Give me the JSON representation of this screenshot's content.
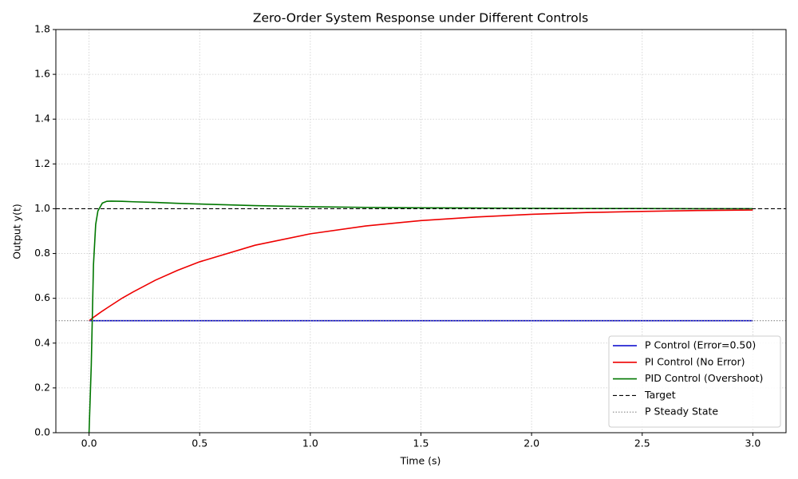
{
  "chart_data": {
    "type": "line",
    "title": "Zero-Order System Response under Different Controls",
    "xlabel": "Time (s)",
    "ylabel": "Output y(t)",
    "x": [
      0,
      0.01,
      0.02,
      0.03,
      0.04,
      0.06,
      0.08,
      0.1,
      0.15,
      0.2,
      0.3,
      0.4,
      0.5,
      0.75,
      1.0,
      1.25,
      1.5,
      1.75,
      2.0,
      2.25,
      2.5,
      2.75,
      3.0
    ],
    "series": [
      {
        "name": "P Control (Error=0.50)",
        "color": "#0000cc",
        "values": [
          0.5,
          0.5,
          0.5,
          0.5,
          0.5,
          0.5,
          0.5,
          0.5,
          0.5,
          0.5,
          0.5,
          0.5,
          0.5,
          0.5,
          0.5,
          0.5,
          0.5,
          0.5,
          0.5,
          0.5,
          0.5,
          0.5,
          0.5
        ]
      },
      {
        "name": "PI Control (No Error)",
        "color": "#ee0000",
        "values": [
          0.5,
          0.507,
          0.515,
          0.522,
          0.529,
          0.543,
          0.556,
          0.569,
          0.601,
          0.629,
          0.681,
          0.725,
          0.763,
          0.837,
          0.888,
          0.923,
          0.947,
          0.963,
          0.975,
          0.983,
          0.988,
          0.992,
          0.994
        ]
      },
      {
        "name": "PID Control (Overshoot)",
        "color": "#007700",
        "values": [
          0,
          0.3,
          0.75,
          0.93,
          0.99,
          1.025,
          1.033,
          1.034,
          1.033,
          1.031,
          1.028,
          1.024,
          1.021,
          1.014,
          1.009,
          1.006,
          1.004,
          1.003,
          1.002,
          1.001,
          1.001,
          1.0,
          1.0
        ]
      }
    ],
    "hlines": [
      {
        "name": "Target",
        "value": 1.0,
        "color": "#000000",
        "style": "dashed"
      },
      {
        "name": "P Steady State",
        "value": 0.5,
        "color": "#888888",
        "style": "dotted"
      }
    ],
    "xlim": [
      -0.15,
      3.15
    ],
    "ylim": [
      0,
      1.8
    ],
    "xticks": [
      {
        "value": 0,
        "label": "0.0"
      },
      0.5,
      {
        "value": 1,
        "label": "1.0"
      },
      1.5,
      {
        "value": 2,
        "label": "2.0"
      },
      2.5,
      {
        "value": 3,
        "label": "3.0"
      }
    ],
    "yticks": [
      {
        "value": 0,
        "label": "0.0"
      },
      0.2,
      0.4,
      0.6,
      0.8,
      {
        "value": 1,
        "label": "1.0"
      },
      1.2,
      1.4,
      1.6,
      1.8
    ],
    "grid": true,
    "legend": "lower right"
  }
}
